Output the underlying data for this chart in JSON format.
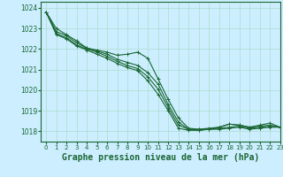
{
  "background_color": "#cceeff",
  "plot_bg_color": "#cceeff",
  "grid_color": "#aaddcc",
  "line_color": "#1a6633",
  "xlabel": "Graphe pression niveau de la mer (hPa)",
  "xlabel_fontsize": 7,
  "title": "",
  "xlim": [
    -0.5,
    23
  ],
  "ylim": [
    1017.5,
    1024.3
  ],
  "yticks": [
    1018,
    1019,
    1020,
    1021,
    1022,
    1023,
    1024
  ],
  "xticks": [
    0,
    1,
    2,
    3,
    4,
    5,
    6,
    7,
    8,
    9,
    10,
    11,
    12,
    13,
    14,
    15,
    16,
    17,
    18,
    19,
    20,
    21,
    22,
    23
  ],
  "series": [
    {
      "x": [
        0,
        1,
        2,
        3,
        4,
        5,
        6,
        7,
        8,
        9,
        10,
        11,
        12,
        13,
        14,
        15,
        16,
        17,
        18,
        19,
        20,
        21,
        22,
        23
      ],
      "y": [
        1023.8,
        1023.0,
        1022.7,
        1022.4,
        1022.05,
        1021.95,
        1021.85,
        1021.7,
        1021.75,
        1021.85,
        1021.55,
        1020.55,
        1019.55,
        1018.65,
        1018.15,
        1018.1,
        1018.1,
        1018.2,
        1018.35,
        1018.3,
        1018.2,
        1018.3,
        1018.4,
        1018.2
      ]
    },
    {
      "x": [
        0,
        1,
        2,
        3,
        4,
        5,
        6,
        7,
        8,
        9,
        10,
        11,
        12,
        13,
        14,
        15,
        16,
        17,
        18,
        19,
        20,
        21,
        22,
        23
      ],
      "y": [
        1023.8,
        1022.85,
        1022.65,
        1022.3,
        1022.05,
        1021.9,
        1021.75,
        1021.5,
        1021.35,
        1021.2,
        1020.85,
        1020.3,
        1019.3,
        1018.45,
        1018.1,
        1018.1,
        1018.15,
        1018.2,
        1018.35,
        1018.3,
        1018.2,
        1018.25,
        1018.3,
        1018.2
      ]
    },
    {
      "x": [
        0,
        1,
        2,
        3,
        4,
        5,
        6,
        7,
        8,
        9,
        10,
        11,
        12,
        13,
        14,
        15,
        16,
        17,
        18,
        19,
        20,
        21,
        22,
        23
      ],
      "y": [
        1023.8,
        1022.75,
        1022.55,
        1022.2,
        1022.0,
        1021.85,
        1021.65,
        1021.4,
        1021.2,
        1021.05,
        1020.65,
        1020.05,
        1019.15,
        1018.3,
        1018.1,
        1018.05,
        1018.1,
        1018.15,
        1018.2,
        1018.25,
        1018.15,
        1018.2,
        1018.25,
        1018.2
      ]
    },
    {
      "x": [
        0,
        1,
        2,
        3,
        4,
        5,
        6,
        7,
        8,
        9,
        10,
        11,
        12,
        13,
        14,
        15,
        16,
        17,
        18,
        19,
        20,
        21,
        22,
        23
      ],
      "y": [
        1023.8,
        1022.7,
        1022.5,
        1022.15,
        1021.95,
        1021.75,
        1021.55,
        1021.3,
        1021.1,
        1020.95,
        1020.45,
        1019.8,
        1019.0,
        1018.15,
        1018.05,
        1018.05,
        1018.1,
        1018.1,
        1018.15,
        1018.2,
        1018.1,
        1018.15,
        1018.2,
        1018.2
      ]
    }
  ]
}
